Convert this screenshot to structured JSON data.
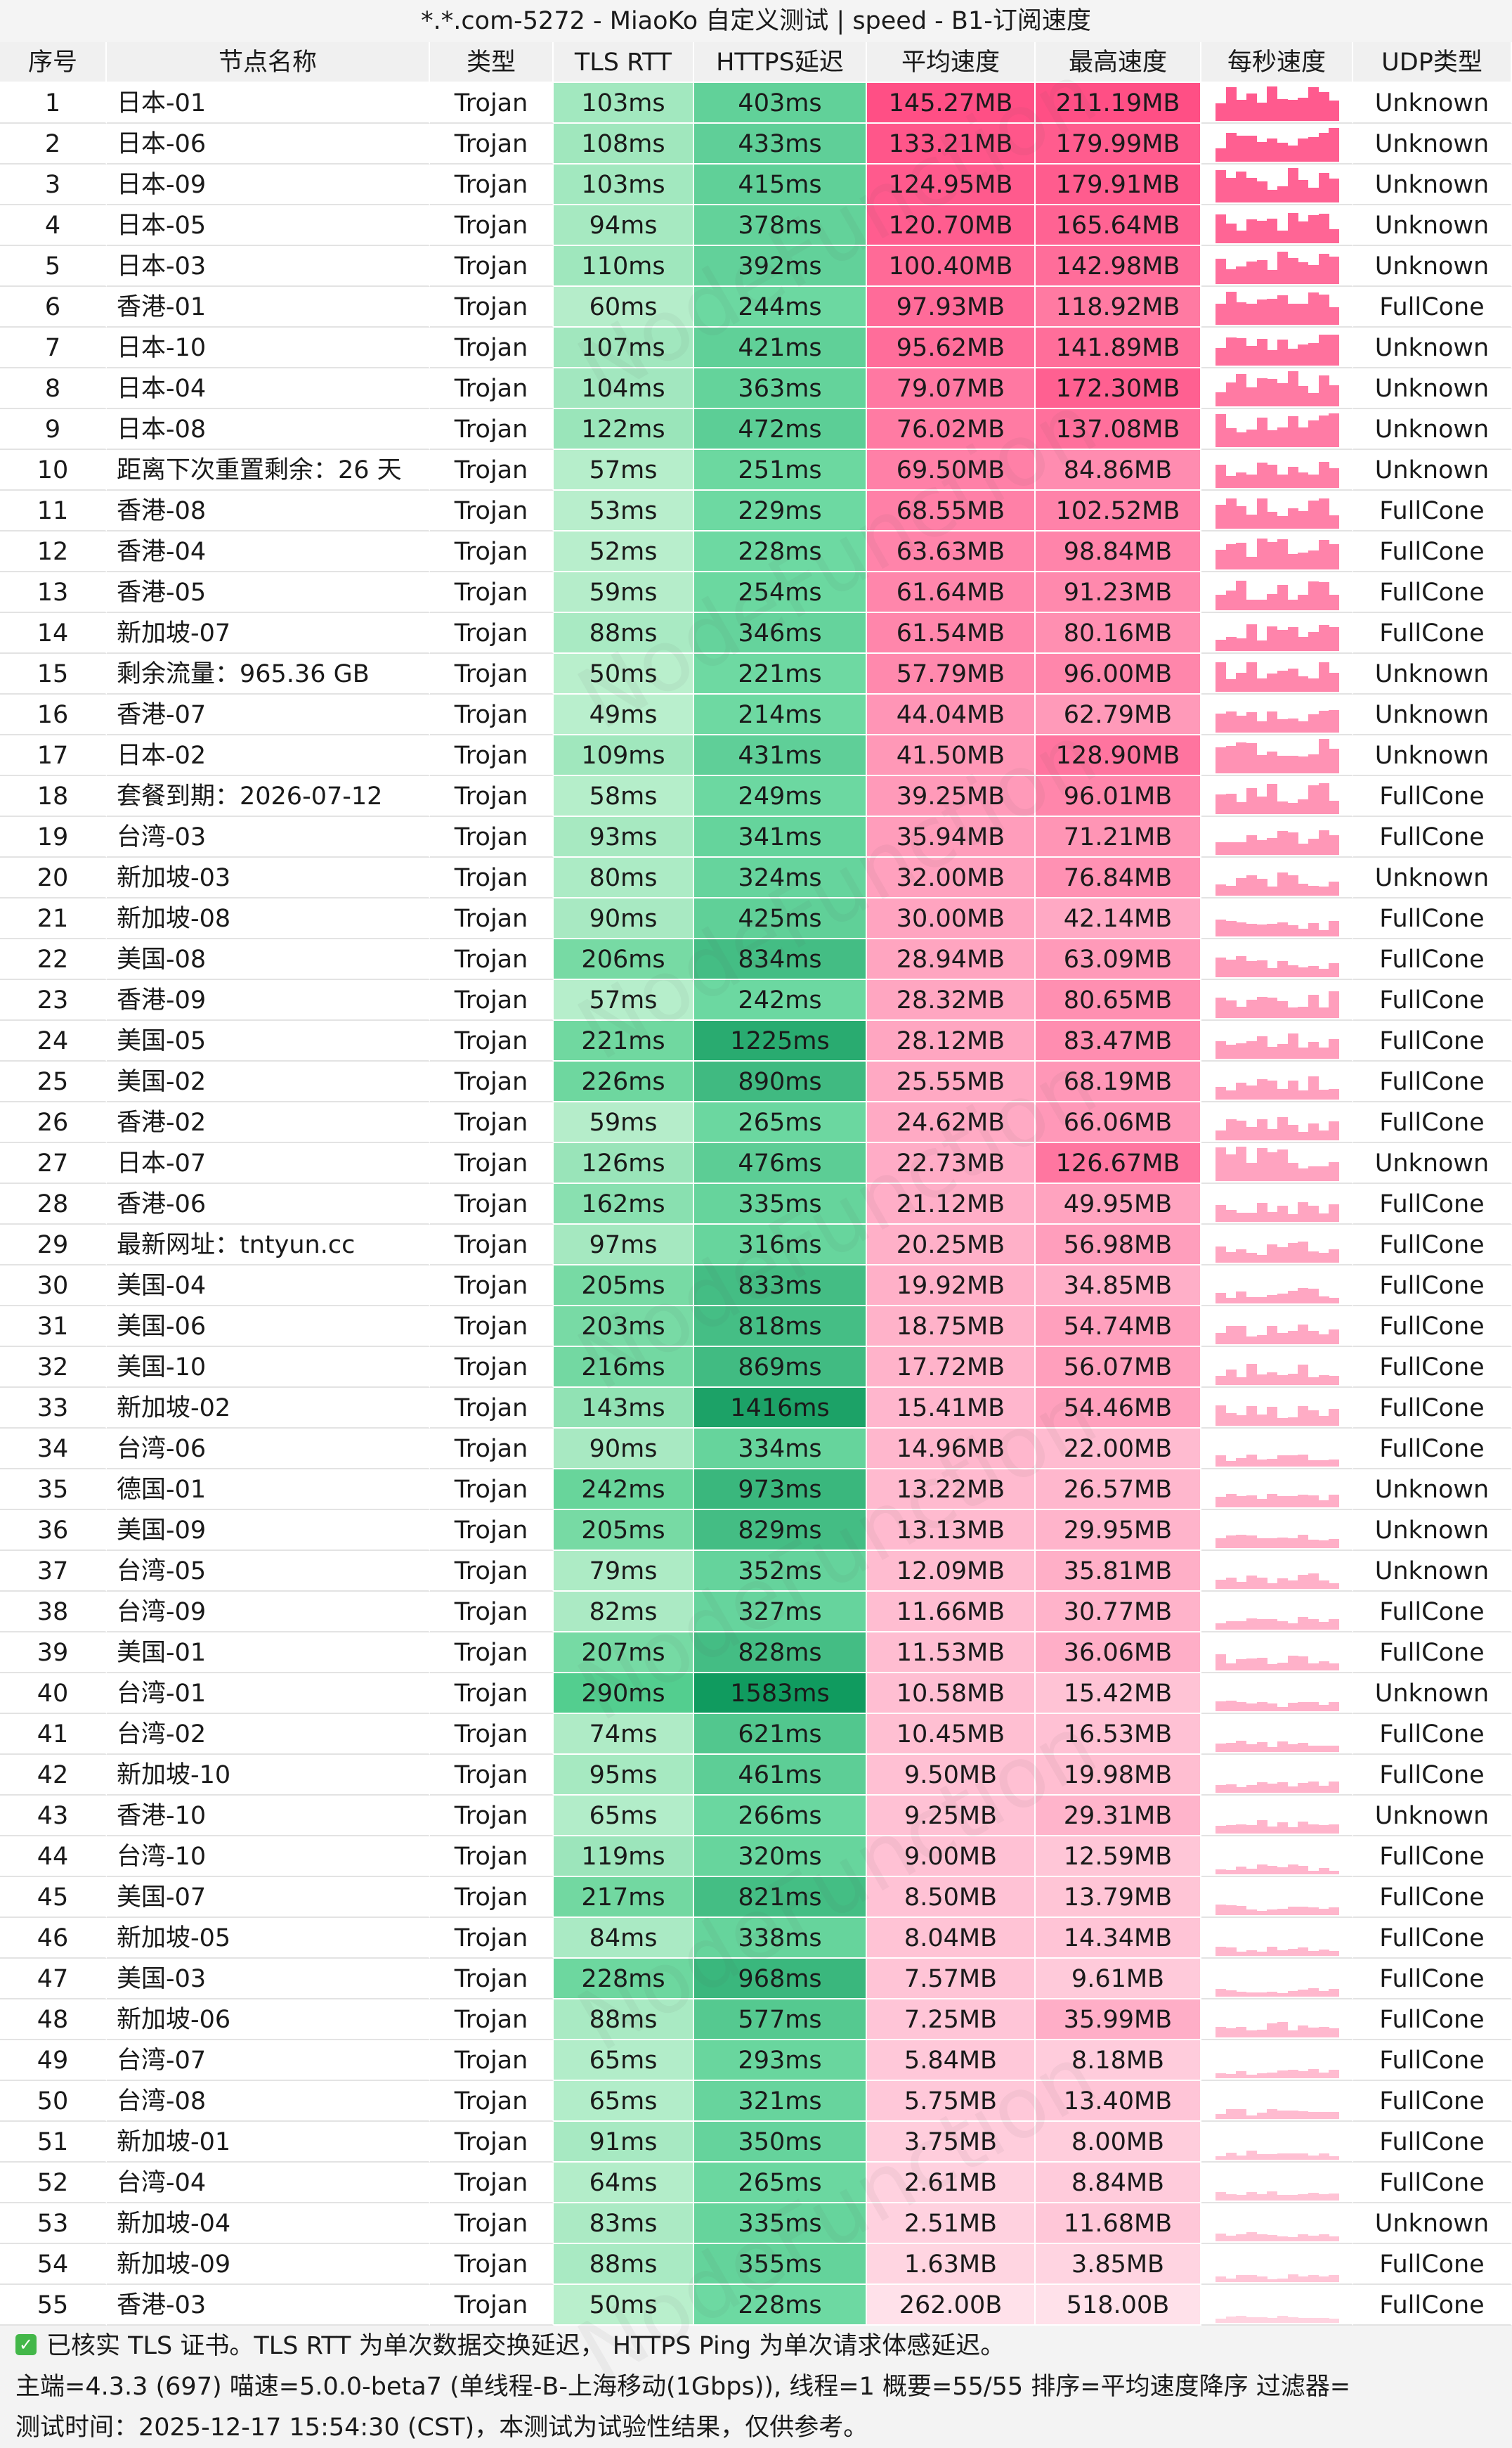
{
  "title": "*.*.com-5272 - MiaoKo 自定义测试 | speed - B1-订阅速度",
  "watermark": "NodeFunction",
  "headers": [
    "序号",
    "节点名称",
    "类型",
    "TLS RTT",
    "HTTPS延迟",
    "平均速度",
    "最高速度",
    "每秒速度",
    "UDP类型"
  ],
  "rows": [
    {
      "idx": "1",
      "name": "日本-01",
      "type": "Trojan",
      "tls": "103ms",
      "https": "403ms",
      "avg": "145.27MB",
      "max": "211.19MB",
      "udp": "Unknown"
    },
    {
      "idx": "2",
      "name": "日本-06",
      "type": "Trojan",
      "tls": "108ms",
      "https": "433ms",
      "avg": "133.21MB",
      "max": "179.99MB",
      "udp": "Unknown"
    },
    {
      "idx": "3",
      "name": "日本-09",
      "type": "Trojan",
      "tls": "103ms",
      "https": "415ms",
      "avg": "124.95MB",
      "max": "179.91MB",
      "udp": "Unknown"
    },
    {
      "idx": "4",
      "name": "日本-05",
      "type": "Trojan",
      "tls": "94ms",
      "https": "378ms",
      "avg": "120.70MB",
      "max": "165.64MB",
      "udp": "Unknown"
    },
    {
      "idx": "5",
      "name": "日本-03",
      "type": "Trojan",
      "tls": "110ms",
      "https": "392ms",
      "avg": "100.40MB",
      "max": "142.98MB",
      "udp": "Unknown"
    },
    {
      "idx": "6",
      "name": "香港-01",
      "type": "Trojan",
      "tls": "60ms",
      "https": "244ms",
      "avg": "97.93MB",
      "max": "118.92MB",
      "udp": "FullCone"
    },
    {
      "idx": "7",
      "name": "日本-10",
      "type": "Trojan",
      "tls": "107ms",
      "https": "421ms",
      "avg": "95.62MB",
      "max": "141.89MB",
      "udp": "Unknown"
    },
    {
      "idx": "8",
      "name": "日本-04",
      "type": "Trojan",
      "tls": "104ms",
      "https": "363ms",
      "avg": "79.07MB",
      "max": "172.30MB",
      "udp": "Unknown"
    },
    {
      "idx": "9",
      "name": "日本-08",
      "type": "Trojan",
      "tls": "122ms",
      "https": "472ms",
      "avg": "76.02MB",
      "max": "137.08MB",
      "udp": "Unknown"
    },
    {
      "idx": "10",
      "name": "距离下次重置剩余：26 天",
      "type": "Trojan",
      "tls": "57ms",
      "https": "251ms",
      "avg": "69.50MB",
      "max": "84.86MB",
      "udp": "Unknown"
    },
    {
      "idx": "11",
      "name": "香港-08",
      "type": "Trojan",
      "tls": "53ms",
      "https": "229ms",
      "avg": "68.55MB",
      "max": "102.52MB",
      "udp": "FullCone"
    },
    {
      "idx": "12",
      "name": "香港-04",
      "type": "Trojan",
      "tls": "52ms",
      "https": "228ms",
      "avg": "63.63MB",
      "max": "98.84MB",
      "udp": "FullCone"
    },
    {
      "idx": "13",
      "name": "香港-05",
      "type": "Trojan",
      "tls": "59ms",
      "https": "254ms",
      "avg": "61.64MB",
      "max": "91.23MB",
      "udp": "FullCone"
    },
    {
      "idx": "14",
      "name": "新加坡-07",
      "type": "Trojan",
      "tls": "88ms",
      "https": "346ms",
      "avg": "61.54MB",
      "max": "80.16MB",
      "udp": "FullCone"
    },
    {
      "idx": "15",
      "name": "剩余流量：965.36 GB",
      "type": "Trojan",
      "tls": "50ms",
      "https": "221ms",
      "avg": "57.79MB",
      "max": "96.00MB",
      "udp": "Unknown"
    },
    {
      "idx": "16",
      "name": "香港-07",
      "type": "Trojan",
      "tls": "49ms",
      "https": "214ms",
      "avg": "44.04MB",
      "max": "62.79MB",
      "udp": "Unknown"
    },
    {
      "idx": "17",
      "name": "日本-02",
      "type": "Trojan",
      "tls": "109ms",
      "https": "431ms",
      "avg": "41.50MB",
      "max": "128.90MB",
      "udp": "Unknown"
    },
    {
      "idx": "18",
      "name": "套餐到期：2026-07-12",
      "type": "Trojan",
      "tls": "58ms",
      "https": "249ms",
      "avg": "39.25MB",
      "max": "96.01MB",
      "udp": "FullCone"
    },
    {
      "idx": "19",
      "name": "台湾-03",
      "type": "Trojan",
      "tls": "93ms",
      "https": "341ms",
      "avg": "35.94MB",
      "max": "71.21MB",
      "udp": "FullCone"
    },
    {
      "idx": "20",
      "name": "新加坡-03",
      "type": "Trojan",
      "tls": "80ms",
      "https": "324ms",
      "avg": "32.00MB",
      "max": "76.84MB",
      "udp": "Unknown"
    },
    {
      "idx": "21",
      "name": "新加坡-08",
      "type": "Trojan",
      "tls": "90ms",
      "https": "425ms",
      "avg": "30.00MB",
      "max": "42.14MB",
      "udp": "FullCone"
    },
    {
      "idx": "22",
      "name": "美国-08",
      "type": "Trojan",
      "tls": "206ms",
      "https": "834ms",
      "avg": "28.94MB",
      "max": "63.09MB",
      "udp": "FullCone"
    },
    {
      "idx": "23",
      "name": "香港-09",
      "type": "Trojan",
      "tls": "57ms",
      "https": "242ms",
      "avg": "28.32MB",
      "max": "80.65MB",
      "udp": "FullCone"
    },
    {
      "idx": "24",
      "name": "美国-05",
      "type": "Trojan",
      "tls": "221ms",
      "https": "1225ms",
      "avg": "28.12MB",
      "max": "83.47MB",
      "udp": "FullCone"
    },
    {
      "idx": "25",
      "name": "美国-02",
      "type": "Trojan",
      "tls": "226ms",
      "https": "890ms",
      "avg": "25.55MB",
      "max": "68.19MB",
      "udp": "FullCone"
    },
    {
      "idx": "26",
      "name": "香港-02",
      "type": "Trojan",
      "tls": "59ms",
      "https": "265ms",
      "avg": "24.62MB",
      "max": "66.06MB",
      "udp": "FullCone"
    },
    {
      "idx": "27",
      "name": "日本-07",
      "type": "Trojan",
      "tls": "126ms",
      "https": "476ms",
      "avg": "22.73MB",
      "max": "126.67MB",
      "udp": "Unknown"
    },
    {
      "idx": "28",
      "name": "香港-06",
      "type": "Trojan",
      "tls": "162ms",
      "https": "335ms",
      "avg": "21.12MB",
      "max": "49.95MB",
      "udp": "FullCone"
    },
    {
      "idx": "29",
      "name": "最新网址：tntyun.cc",
      "type": "Trojan",
      "tls": "97ms",
      "https": "316ms",
      "avg": "20.25MB",
      "max": "56.98MB",
      "udp": "FullCone"
    },
    {
      "idx": "30",
      "name": "美国-04",
      "type": "Trojan",
      "tls": "205ms",
      "https": "833ms",
      "avg": "19.92MB",
      "max": "34.85MB",
      "udp": "FullCone"
    },
    {
      "idx": "31",
      "name": "美国-06",
      "type": "Trojan",
      "tls": "203ms",
      "https": "818ms",
      "avg": "18.75MB",
      "max": "54.74MB",
      "udp": "FullCone"
    },
    {
      "idx": "32",
      "name": "美国-10",
      "type": "Trojan",
      "tls": "216ms",
      "https": "869ms",
      "avg": "17.72MB",
      "max": "56.07MB",
      "udp": "FullCone"
    },
    {
      "idx": "33",
      "name": "新加坡-02",
      "type": "Trojan",
      "tls": "143ms",
      "https": "1416ms",
      "avg": "15.41MB",
      "max": "54.46MB",
      "udp": "FullCone"
    },
    {
      "idx": "34",
      "name": "台湾-06",
      "type": "Trojan",
      "tls": "90ms",
      "https": "334ms",
      "avg": "14.96MB",
      "max": "22.00MB",
      "udp": "FullCone"
    },
    {
      "idx": "35",
      "name": "德国-01",
      "type": "Trojan",
      "tls": "242ms",
      "https": "973ms",
      "avg": "13.22MB",
      "max": "26.57MB",
      "udp": "Unknown"
    },
    {
      "idx": "36",
      "name": "美国-09",
      "type": "Trojan",
      "tls": "205ms",
      "https": "829ms",
      "avg": "13.13MB",
      "max": "29.95MB",
      "udp": "Unknown"
    },
    {
      "idx": "37",
      "name": "台湾-05",
      "type": "Trojan",
      "tls": "79ms",
      "https": "352ms",
      "avg": "12.09MB",
      "max": "35.81MB",
      "udp": "Unknown"
    },
    {
      "idx": "38",
      "name": "台湾-09",
      "type": "Trojan",
      "tls": "82ms",
      "https": "327ms",
      "avg": "11.66MB",
      "max": "30.77MB",
      "udp": "FullCone"
    },
    {
      "idx": "39",
      "name": "美国-01",
      "type": "Trojan",
      "tls": "207ms",
      "https": "828ms",
      "avg": "11.53MB",
      "max": "36.06MB",
      "udp": "FullCone"
    },
    {
      "idx": "40",
      "name": "台湾-01",
      "type": "Trojan",
      "tls": "290ms",
      "https": "1583ms",
      "avg": "10.58MB",
      "max": "15.42MB",
      "udp": "Unknown"
    },
    {
      "idx": "41",
      "name": "台湾-02",
      "type": "Trojan",
      "tls": "74ms",
      "https": "621ms",
      "avg": "10.45MB",
      "max": "16.53MB",
      "udp": "FullCone"
    },
    {
      "idx": "42",
      "name": "新加坡-10",
      "type": "Trojan",
      "tls": "95ms",
      "https": "461ms",
      "avg": "9.50MB",
      "max": "19.98MB",
      "udp": "FullCone"
    },
    {
      "idx": "43",
      "name": "香港-10",
      "type": "Trojan",
      "tls": "65ms",
      "https": "266ms",
      "avg": "9.25MB",
      "max": "29.31MB",
      "udp": "Unknown"
    },
    {
      "idx": "44",
      "name": "台湾-10",
      "type": "Trojan",
      "tls": "119ms",
      "https": "320ms",
      "avg": "9.00MB",
      "max": "12.59MB",
      "udp": "FullCone"
    },
    {
      "idx": "45",
      "name": "美国-07",
      "type": "Trojan",
      "tls": "217ms",
      "https": "821ms",
      "avg": "8.50MB",
      "max": "13.79MB",
      "udp": "FullCone"
    },
    {
      "idx": "46",
      "name": "新加坡-05",
      "type": "Trojan",
      "tls": "84ms",
      "https": "338ms",
      "avg": "8.04MB",
      "max": "14.34MB",
      "udp": "FullCone"
    },
    {
      "idx": "47",
      "name": "美国-03",
      "type": "Trojan",
      "tls": "228ms",
      "https": "968ms",
      "avg": "7.57MB",
      "max": "9.61MB",
      "udp": "FullCone"
    },
    {
      "idx": "48",
      "name": "新加坡-06",
      "type": "Trojan",
      "tls": "88ms",
      "https": "577ms",
      "avg": "7.25MB",
      "max": "35.99MB",
      "udp": "FullCone"
    },
    {
      "idx": "49",
      "name": "台湾-07",
      "type": "Trojan",
      "tls": "65ms",
      "https": "293ms",
      "avg": "5.84MB",
      "max": "8.18MB",
      "udp": "FullCone"
    },
    {
      "idx": "50",
      "name": "台湾-08",
      "type": "Trojan",
      "tls": "65ms",
      "https": "321ms",
      "avg": "5.75MB",
      "max": "13.40MB",
      "udp": "FullCone"
    },
    {
      "idx": "51",
      "name": "新加坡-01",
      "type": "Trojan",
      "tls": "91ms",
      "https": "350ms",
      "avg": "3.75MB",
      "max": "8.00MB",
      "udp": "FullCone"
    },
    {
      "idx": "52",
      "name": "台湾-04",
      "type": "Trojan",
      "tls": "64ms",
      "https": "265ms",
      "avg": "2.61MB",
      "max": "8.84MB",
      "udp": "FullCone"
    },
    {
      "idx": "53",
      "name": "新加坡-04",
      "type": "Trojan",
      "tls": "83ms",
      "https": "335ms",
      "avg": "2.51MB",
      "max": "11.68MB",
      "udp": "Unknown"
    },
    {
      "idx": "54",
      "name": "新加坡-09",
      "type": "Trojan",
      "tls": "88ms",
      "https": "355ms",
      "avg": "1.63MB",
      "max": "3.85MB",
      "udp": "FullCone"
    },
    {
      "idx": "55",
      "name": "香港-03",
      "type": "Trojan",
      "tls": "50ms",
      "https": "228ms",
      "avg": "262.00B",
      "max": "518.00B",
      "udp": "FullCone"
    }
  ],
  "footer": {
    "note": "已核实 TLS 证书。TLS RTT 为单次数据交换延迟， HTTPS Ping 为单次请求体感延迟。",
    "info": "主端=4.3.3 (697) 喵速=5.0.0-beta7 (单线程-B-上海移动(1Gbps)), 线程=1 概要=55/55 排序=平均速度降序 过滤器=",
    "time": "测试时间：2025-12-17 15:54:30 (CST)，本测试为试验性结果，仅供参考。"
  },
  "colors": {
    "header_bg": "#f0f0f0",
    "tls_green": "#7fdca4",
    "https_green": "#1fbf7a",
    "speed_pink": "#ff4f85",
    "spark_pink": "#ff5a8e"
  }
}
